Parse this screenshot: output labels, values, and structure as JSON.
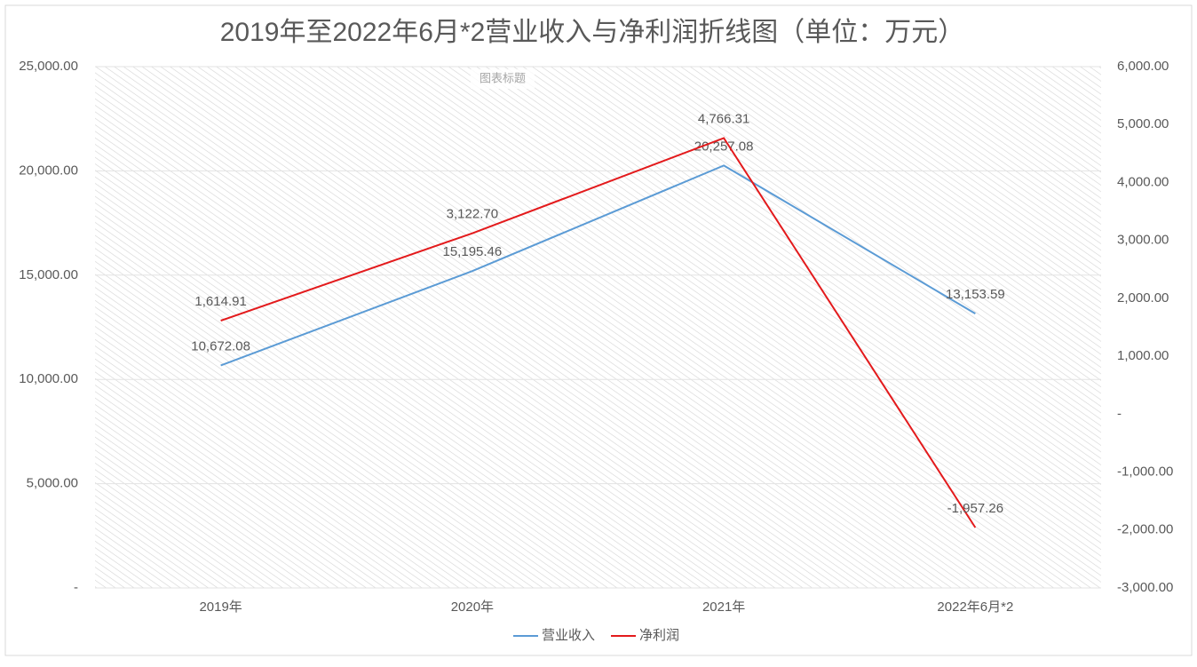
{
  "chart_data": {
    "type": "line",
    "title": "2019年至2022年6月*2营业收入与净利润折线图（单位：万元）",
    "annotation": "图表标题",
    "categories": [
      "2019年",
      "2020年",
      "2021年",
      "2022年6月*2"
    ],
    "series": [
      {
        "name": "营业收入",
        "color": "#5b9bd5",
        "values": [
          10672.08,
          15195.46,
          20257.08,
          13153.59
        ],
        "value_labels": [
          "10,672.08",
          "15,195.46",
          "20,257.08",
          "13,153.59"
        ]
      },
      {
        "name": "净利润",
        "color": "#e31a1c",
        "axis": "y2",
        "values": [
          1614.91,
          3122.7,
          4766.31,
          -1957.26
        ],
        "value_labels": [
          "1,614.91",
          "3,122.70",
          "4,766.31",
          "-1,957.26"
        ]
      }
    ],
    "ylim": [
      0,
      25000
    ],
    "yticks": [
      {
        "value": 0,
        "label": "-"
      },
      {
        "value": 5000,
        "label": "5,000.00"
      },
      {
        "value": 10000,
        "label": "10,000.00"
      },
      {
        "value": 15000,
        "label": "15,000.00"
      },
      {
        "value": 20000,
        "label": "20,000.00"
      },
      {
        "value": 25000,
        "label": "25,000.00"
      }
    ],
    "y2lim": [
      -3000,
      6000
    ],
    "y2ticks": [
      {
        "value": -3000,
        "label": "-3,000.00"
      },
      {
        "value": -2000,
        "label": "-2,000.00"
      },
      {
        "value": -1000,
        "label": "-1,000.00"
      },
      {
        "value": 0,
        "label": "-"
      },
      {
        "value": 1000,
        "label": "1,000.00"
      },
      {
        "value": 2000,
        "label": "2,000.00"
      },
      {
        "value": 3000,
        "label": "3,000.00"
      },
      {
        "value": 4000,
        "label": "4,000.00"
      },
      {
        "value": 5000,
        "label": "5,000.00"
      },
      {
        "value": 6000,
        "label": "6,000.00"
      }
    ],
    "grid": true,
    "legend": "bottom"
  }
}
